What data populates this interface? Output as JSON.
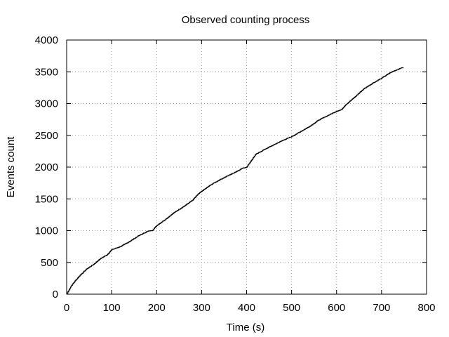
{
  "chart_data": {
    "type": "line",
    "title": "Observed counting process",
    "xlabel": "Time (s)",
    "ylabel": "Events count",
    "xlim": [
      0,
      800
    ],
    "ylim": [
      0,
      4000
    ],
    "xticks": [
      0,
      100,
      200,
      300,
      400,
      500,
      600,
      700,
      800
    ],
    "yticks": [
      0,
      500,
      1000,
      1500,
      2000,
      2500,
      3000,
      3500,
      4000
    ],
    "grid": true,
    "series": [
      {
        "name": "Observed counting process",
        "style": "step",
        "x": [
          0,
          10,
          20,
          30,
          45,
          60,
          75,
          90,
          100,
          120,
          140,
          160,
          180,
          190,
          200,
          220,
          240,
          260,
          280,
          290,
          300,
          320,
          340,
          360,
          380,
          390,
          400,
          410,
          420,
          440,
          460,
          480,
          500,
          520,
          540,
          560,
          580,
          600,
          610,
          620,
          640,
          660,
          680,
          700,
          720,
          740,
          748
        ],
        "values": [
          0,
          130,
          220,
          300,
          400,
          470,
          560,
          620,
          700,
          750,
          830,
          920,
          990,
          1000,
          1080,
          1180,
          1290,
          1380,
          1480,
          1560,
          1620,
          1720,
          1800,
          1870,
          1940,
          1980,
          2000,
          2100,
          2200,
          2280,
          2350,
          2420,
          2480,
          2560,
          2640,
          2740,
          2810,
          2880,
          2900,
          2980,
          3100,
          3230,
          3320,
          3400,
          3490,
          3550,
          3570
        ]
      }
    ]
  }
}
